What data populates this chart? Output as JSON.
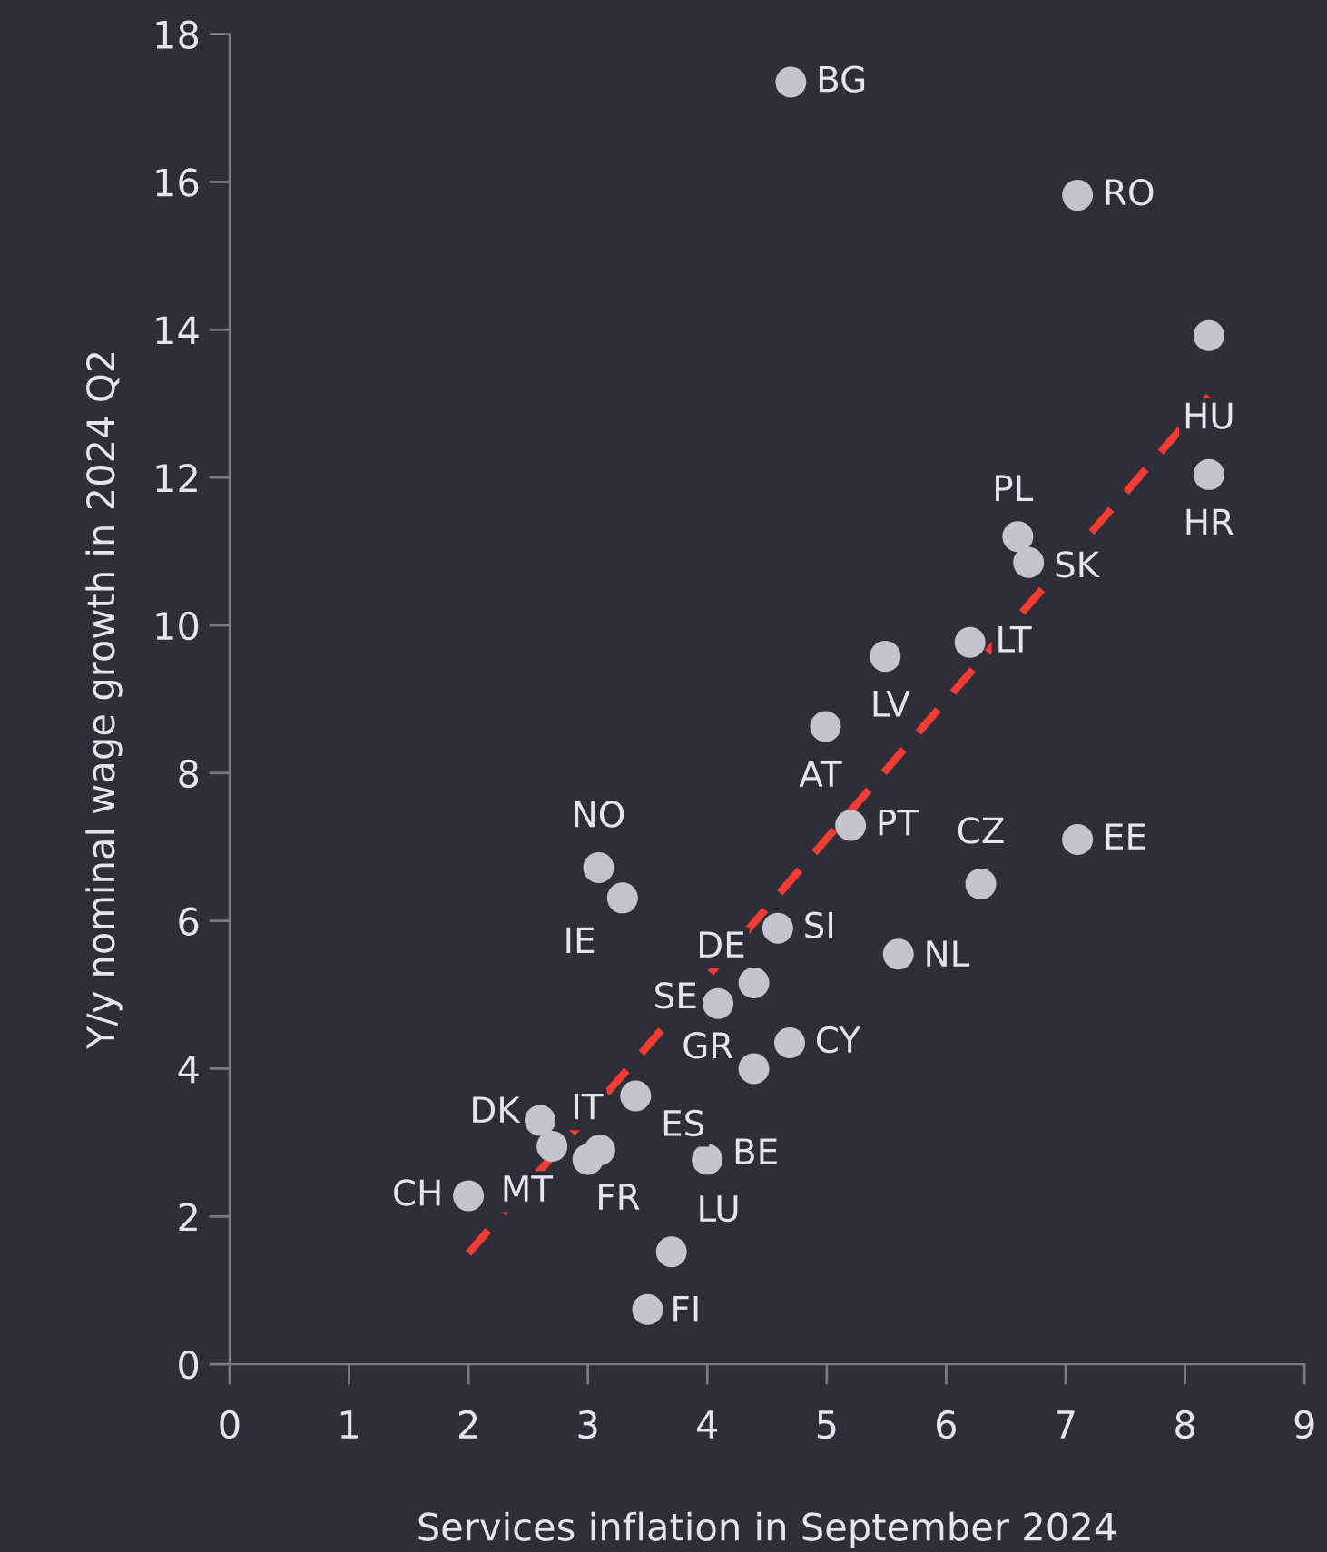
{
  "chart_data": {
    "type": "scatter",
    "xlabel": "Services inflation in September 2024",
    "ylabel": "Y/y nominal wage growth in 2024 Q2",
    "xlim": [
      0,
      9
    ],
    "ylim": [
      0,
      18
    ],
    "xticks": [
      0,
      1,
      2,
      3,
      4,
      5,
      6,
      7,
      8,
      9
    ],
    "yticks": [
      0,
      2,
      4,
      6,
      8,
      10,
      12,
      14,
      16,
      18
    ],
    "grid": false,
    "legend": false,
    "marker": "circle",
    "series": [
      {
        "color": "#c4c4cc",
        "x": [
          4.7,
          7.1,
          8.2,
          8.2,
          6.6,
          6.69,
          6.2,
          5.49,
          4.99,
          5.2,
          6.29,
          7.1,
          3.09,
          3.29,
          4.59,
          4.39,
          5.6,
          4.09,
          4.69,
          4.39,
          3.4,
          3.1,
          3.0,
          2.7,
          2.6,
          2.0,
          4.0,
          3.7,
          3.5
        ],
        "values": [
          17.35,
          15.82,
          13.92,
          12.04,
          11.2,
          10.85,
          9.77,
          9.58,
          8.63,
          7.29,
          6.5,
          7.1,
          6.72,
          6.31,
          5.9,
          5.16,
          5.55,
          4.88,
          4.35,
          4.0,
          3.63,
          2.9,
          2.77,
          2.95,
          3.3,
          2.28,
          2.77,
          1.52,
          0.74
        ]
      },
      {
        "type": "line",
        "color": "#f23b33",
        "line_style": "dashed",
        "marker": "none",
        "x": [
          2.0,
          8.2
        ],
        "values": [
          1.5,
          13.1
        ]
      }
    ],
    "annotations": [
      {
        "text": "BG",
        "x": 4.7,
        "y": 17.35
      },
      {
        "text": "RO",
        "x": 7.1,
        "y": 15.82
      },
      {
        "text": "HU",
        "x": 8.2,
        "y": 13.92
      },
      {
        "text": "HR",
        "x": 8.2,
        "y": 12.04
      },
      {
        "text": "PL",
        "x": 6.6,
        "y": 11.2
      },
      {
        "text": "SK",
        "x": 6.69,
        "y": 10.85
      },
      {
        "text": "LT",
        "x": 6.2,
        "y": 9.77
      },
      {
        "text": "LV",
        "x": 5.49,
        "y": 9.58
      },
      {
        "text": "AT",
        "x": 4.99,
        "y": 8.63
      },
      {
        "text": "PT",
        "x": 5.2,
        "y": 7.29
      },
      {
        "text": "CZ",
        "x": 6.29,
        "y": 6.5
      },
      {
        "text": "EE",
        "x": 7.1,
        "y": 7.1
      },
      {
        "text": "NO",
        "x": 3.09,
        "y": 6.72
      },
      {
        "text": "IE",
        "x": 3.29,
        "y": 6.31
      },
      {
        "text": "SI",
        "x": 4.59,
        "y": 5.9
      },
      {
        "text": "DE",
        "x": 4.39,
        "y": 5.16
      },
      {
        "text": "NL",
        "x": 5.6,
        "y": 5.55
      },
      {
        "text": "SE",
        "x": 4.09,
        "y": 4.88
      },
      {
        "text": "CY",
        "x": 4.69,
        "y": 4.35
      },
      {
        "text": "GR",
        "x": 4.39,
        "y": 4.0
      },
      {
        "text": "ES",
        "x": 3.4,
        "y": 3.63
      },
      {
        "text": "IT",
        "x": 3.1,
        "y": 2.9
      },
      {
        "text": "FR",
        "x": 3.0,
        "y": 2.77
      },
      {
        "text": "MT",
        "x": 2.7,
        "y": 2.95
      },
      {
        "text": "DK",
        "x": 2.6,
        "y": 3.3
      },
      {
        "text": "CH",
        "x": 2.0,
        "y": 2.28
      },
      {
        "text": "BE",
        "x": 4.0,
        "y": 2.77
      },
      {
        "text": "LU",
        "x": 3.7,
        "y": 1.52
      },
      {
        "text": "FI",
        "x": 3.5,
        "y": 0.74
      }
    ]
  }
}
